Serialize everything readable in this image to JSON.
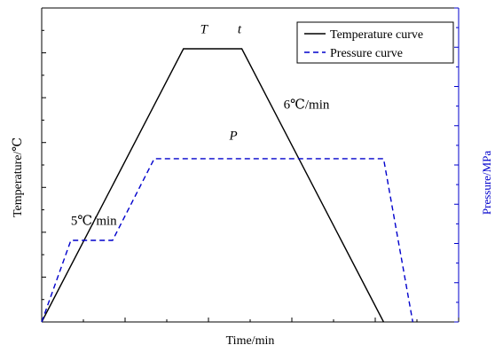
{
  "chart_data": {
    "type": "line",
    "title": "",
    "xlabel": "Time/min",
    "ylabel": "Temperature/℃",
    "y2label": "Pressure/MPa",
    "grid": false,
    "legend_position": "top-right",
    "xlim": [
      0,
      100
    ],
    "ylim": [
      0,
      100
    ],
    "y2lim": [
      0,
      100
    ],
    "series": [
      {
        "name": "Temperature curve",
        "axis": "left",
        "color": "#000000",
        "dash": "solid",
        "x": [
          0,
          34,
          48,
          82
        ],
        "y": [
          0,
          87,
          87,
          0
        ]
      },
      {
        "name": "Pressure curve",
        "axis": "right",
        "color": "#0000cc",
        "dash": "dashed",
        "x": [
          0,
          7,
          17,
          27,
          82,
          89
        ],
        "y": [
          0,
          26,
          26,
          52,
          52,
          0
        ]
      }
    ],
    "annotations": [
      {
        "text": "T",
        "italic": true,
        "x": 38,
        "y": 92
      },
      {
        "text": "t",
        "italic": true,
        "x": 47,
        "y": 92
      },
      {
        "text": "P",
        "italic": true,
        "x": 45,
        "y": 58
      },
      {
        "text": "5℃/min",
        "italic": false,
        "x": 7,
        "y": 31
      },
      {
        "text": "6℃/min",
        "italic": false,
        "x": 58,
        "y": 68
      }
    ]
  }
}
